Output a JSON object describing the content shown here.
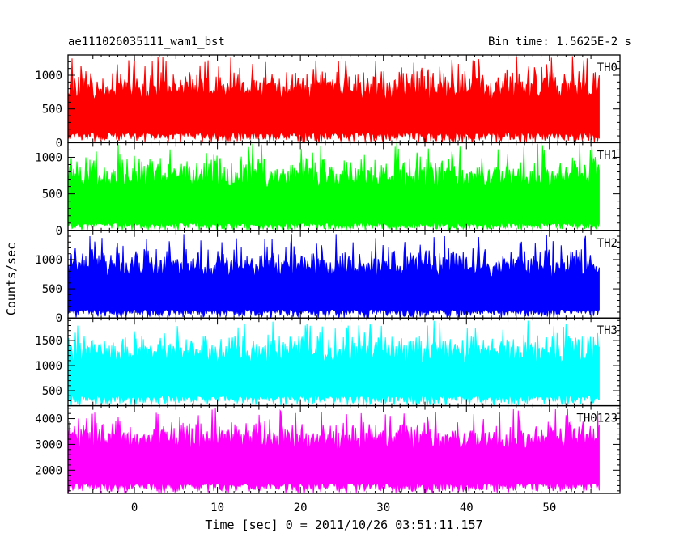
{
  "header": {
    "title": "ae111026035111_wam1_bst",
    "bin_time": "Bin time: 1.5625E-2 s"
  },
  "chart_data": {
    "type": "line",
    "ylabel": "Counts/sec",
    "xlabel": "Time [sec] 0 = 2011/10/26 03:51:11.157",
    "xlim": [
      -8,
      58.5
    ],
    "x_data_range": [
      -8,
      56
    ],
    "x_ticks": [
      0,
      10,
      20,
      30,
      40,
      50
    ],
    "grid": false,
    "panels": [
      {
        "name": "TH0",
        "color": "#ff0000",
        "ylim": [
          0,
          1300
        ],
        "y_ticks": [
          0,
          500,
          1000
        ],
        "typical_low": 150,
        "typical_high": 900,
        "peak_max": 1300
      },
      {
        "name": "TH1",
        "color": "#00ff00",
        "ylim": [
          0,
          1200
        ],
        "y_ticks": [
          0,
          500,
          1000
        ],
        "typical_low": 100,
        "typical_high": 850,
        "peak_max": 1200
      },
      {
        "name": "TH2",
        "color": "#0000ff",
        "ylim": [
          0,
          1500
        ],
        "y_ticks": [
          0,
          500,
          1000
        ],
        "typical_low": 150,
        "typical_high": 1000,
        "peak_max": 1450
      },
      {
        "name": "TH3",
        "color": "#00ffff",
        "ylim": [
          200,
          1950
        ],
        "y_ticks": [
          500,
          1000,
          1500
        ],
        "typical_low": 400,
        "typical_high": 1400,
        "peak_max": 1900
      },
      {
        "name": "TH0123",
        "color": "#ff00ff",
        "ylim": [
          1100,
          4500
        ],
        "y_ticks": [
          2000,
          3000,
          4000
        ],
        "typical_low": 1500,
        "typical_high": 3500,
        "peak_max": 4400
      }
    ]
  }
}
